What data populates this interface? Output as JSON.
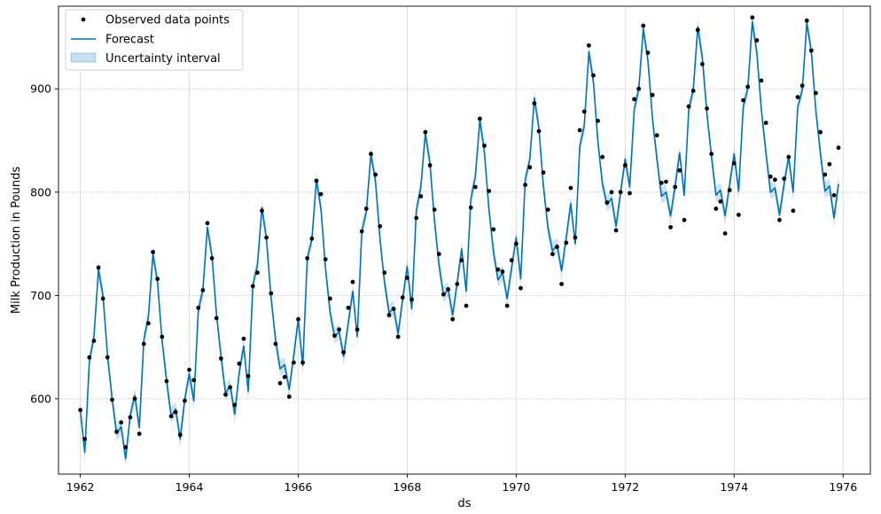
{
  "chart_data": {
    "type": "line",
    "title": "",
    "xlabel": "ds",
    "ylabel": "Milk Production in Pounds",
    "xlim": [
      1961.6,
      1976.5
    ],
    "ylim": [
      527,
      980
    ],
    "x_ticks": [
      1962,
      1964,
      1966,
      1968,
      1970,
      1972,
      1974,
      1976
    ],
    "y_ticks": [
      600,
      700,
      800,
      900
    ],
    "grid": true,
    "legend": {
      "position": "top-left",
      "entries": [
        "Observed data points",
        "Forecast",
        "Uncertainty interval"
      ]
    },
    "colors": {
      "observed": "#000000",
      "forecast": "#0072B2",
      "uncertainty": "#0072B2"
    },
    "series": [
      {
        "name": "Observed data points",
        "kind": "scatter",
        "start": 1962,
        "values": [
          589,
          561,
          640,
          656,
          727,
          697,
          640,
          599,
          568,
          577,
          553,
          582,
          600,
          566,
          653,
          673,
          742,
          716,
          660,
          617,
          583,
          587,
          565,
          598,
          628,
          618,
          688,
          705,
          770,
          736,
          678,
          639,
          604,
          611,
          594,
          634,
          658,
          622,
          709,
          722,
          782,
          756,
          702,
          653,
          615,
          621,
          602,
          635,
          677,
          635,
          736,
          755,
          811,
          798,
          735,
          697,
          661,
          667,
          645,
          688,
          713,
          667,
          762,
          784,
          837,
          817,
          767,
          722,
          681,
          687,
          660,
          698,
          717,
          696,
          775,
          796,
          858,
          826,
          783,
          740,
          701,
          706,
          677,
          711,
          734,
          690,
          785,
          805,
          871,
          845,
          801,
          764,
          725,
          723,
          690,
          734,
          750,
          707,
          807,
          824,
          886,
          859,
          819,
          783,
          740,
          747,
          711,
          751,
          804,
          756,
          860,
          878,
          942,
          913,
          869,
          834,
          790,
          800,
          763,
          800,
          826,
          799,
          890,
          900,
          961,
          935,
          894,
          855,
          809,
          810,
          766,
          805,
          821,
          773,
          883,
          898,
          957,
          924,
          881,
          837,
          784,
          791,
          760,
          802,
          828,
          778,
          889,
          902,
          969,
          947,
          908,
          867,
          815,
          812,
          773,
          813,
          834,
          782,
          892,
          903,
          966,
          937,
          896,
          858,
          817,
          827,
          797,
          843
        ]
      },
      {
        "name": "Forecast",
        "kind": "line",
        "start": 1962,
        "values": [
          589,
          548,
          636,
          660,
          725,
          700,
          642,
          600,
          566,
          573,
          542,
          584,
          603,
          572,
          657,
          679,
          740,
          713,
          657,
          618,
          583,
          590,
          561,
          599,
          624,
          598,
          686,
          705,
          766,
          738,
          681,
          641,
          605,
          613,
          585,
          625,
          651,
          607,
          710,
          729,
          785,
          755,
          698,
          657,
          629,
          633,
          609,
          641,
          677,
          632,
          736,
          754,
          812,
          784,
          727,
          684,
          660,
          665,
          641,
          673,
          704,
          660,
          762,
          781,
          837,
          811,
          755,
          713,
          683,
          688,
          663,
          696,
          728,
          687,
          782,
          805,
          857,
          828,
          772,
          730,
          700,
          706,
          681,
          712,
          745,
          704,
          793,
          815,
          870,
          839,
          783,
          742,
          715,
          722,
          697,
          727,
          756,
          716,
          812,
          832,
          891,
          862,
          806,
          765,
          743,
          749,
          724,
          755,
          789,
          750,
          844,
          864,
          936,
          907,
          849,
          808,
          788,
          794,
          767,
          800,
          832,
          805,
          880,
          900,
          958,
          928,
          872,
          832,
          796,
          800,
          777,
          806,
          838,
          797,
          880,
          899,
          960,
          930,
          876,
          835,
          797,
          802,
          777,
          807,
          837,
          801,
          883,
          900,
          965,
          935,
          880,
          838,
          800,
          804,
          778,
          808,
          834,
          800,
          882,
          899,
          964,
          936,
          879,
          838,
          801,
          806,
          775,
          808
        ]
      }
    ],
    "uncertainty_halfwidth": 7
  }
}
